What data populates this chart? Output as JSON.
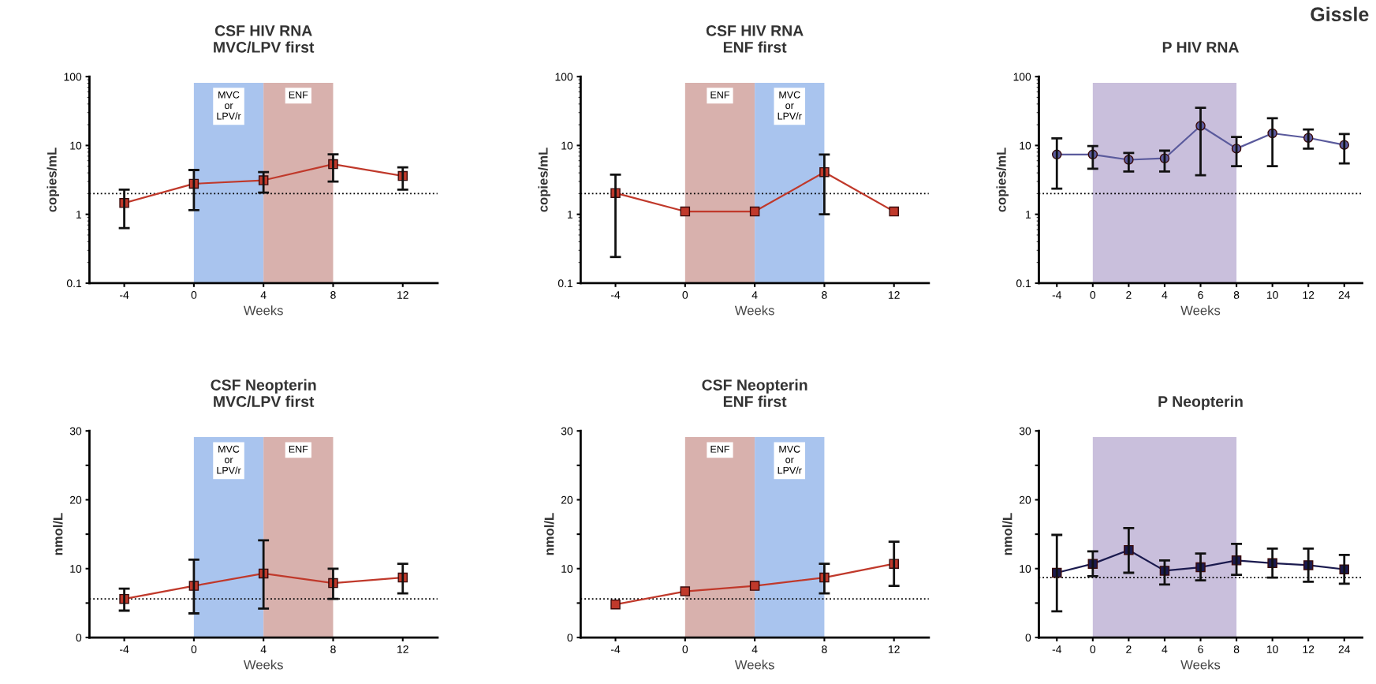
{
  "chart_data": [
    {
      "type": "line",
      "title": "CSF HIV RNA\nMVC/LPV first",
      "xlabel": "Weeks",
      "ylabel": "copies/mL",
      "log": true,
      "x": [
        -4,
        0,
        4,
        8,
        12
      ],
      "xlim": [
        -6,
        14
      ],
      "xticks": [
        -4,
        0,
        4,
        8,
        12
      ],
      "ylim": [
        0.1,
        100
      ],
      "yticks": [
        0.1,
        1,
        10,
        100
      ],
      "marker": "square",
      "grid": false,
      "series": [
        {
          "color": "#c0392b",
          "values": [
            1.46,
            2.78,
            3.12,
            5.35,
            3.6
          ],
          "errors": [
            [
              0.63,
              2.28
            ],
            [
              1.15,
              4.4
            ],
            [
              2.07,
              4.1
            ],
            [
              3.0,
              7.45
            ],
            [
              2.28,
              4.8
            ]
          ]
        }
      ],
      "ref_lines": [
        {
          "axis": "y",
          "value": 2,
          "line_style": "dotted",
          "color": "#000000"
        }
      ],
      "bands": [
        {
          "axis": "x",
          "from": 0,
          "to": 4,
          "label": "MVC\nor\nLPV/r",
          "color": "#a9c4ee"
        },
        {
          "axis": "x",
          "from": 4,
          "to": 8,
          "label": "ENF",
          "color": "#d8b1ad"
        }
      ]
    },
    {
      "type": "line",
      "title": "CSF HIV RNA\nENF first",
      "xlabel": "Weeks",
      "ylabel": "copies/mL",
      "log": true,
      "x": [
        -4,
        0,
        4,
        8,
        12
      ],
      "xlim": [
        -6,
        14
      ],
      "xticks": [
        -4,
        0,
        4,
        8,
        12
      ],
      "ylim": [
        0.1,
        100
      ],
      "yticks": [
        0.1,
        1,
        10,
        100
      ],
      "marker": "square",
      "grid": false,
      "series": [
        {
          "color": "#c0392b",
          "values": [
            2.04,
            1.1,
            1.1,
            4.1,
            1.1
          ],
          "errors": [
            [
              0.24,
              3.77
            ],
            null,
            null,
            [
              1.0,
              7.4
            ],
            null
          ]
        }
      ],
      "ref_lines": [
        {
          "axis": "y",
          "value": 2,
          "line_style": "dotted",
          "color": "#000000"
        }
      ],
      "bands": [
        {
          "axis": "x",
          "from": 0,
          "to": 4,
          "label": "ENF",
          "color": "#d8b1ad"
        },
        {
          "axis": "x",
          "from": 4,
          "to": 8,
          "label": "MVC\nor\nLPV/r",
          "color": "#a9c4ee"
        }
      ]
    },
    {
      "type": "line",
      "title": "P HIV RNA",
      "xlabel": "Weeks",
      "ylabel": "copies/mL",
      "log": true,
      "categories": [
        "-4",
        "0",
        "2",
        "4",
        "6",
        "8",
        "10",
        "12",
        "24"
      ],
      "ylim": [
        0.1,
        100
      ],
      "yticks": [
        0.1,
        1,
        10,
        100
      ],
      "marker": "circle",
      "grid": false,
      "series": [
        {
          "color": "#5a5a9c",
          "values": [
            7.4,
            7.4,
            6.2,
            6.5,
            19.3,
            9.0,
            15.0,
            12.9,
            10.2
          ],
          "errors": [
            [
              2.36,
              12.7
            ],
            [
              4.6,
              9.8
            ],
            [
              4.2,
              7.8
            ],
            [
              4.2,
              8.4
            ],
            [
              3.7,
              35.3
            ],
            [
              5.0,
              13.3
            ],
            [
              5.0,
              24.8
            ],
            [
              9.0,
              17.1
            ],
            [
              5.5,
              14.7
            ]
          ]
        }
      ],
      "ref_lines": [
        {
          "axis": "y",
          "value": 2,
          "line_style": "dotted",
          "color": "#000000"
        }
      ],
      "bands": [
        {
          "axis": "x",
          "from": "0",
          "to": "8",
          "color": "#c9bfdc"
        }
      ],
      "annotations": [
        "Gissle"
      ]
    },
    {
      "type": "line",
      "title": "CSF Neopterin\nMVC/LPV first",
      "xlabel": "Weeks",
      "ylabel": "nmol/L",
      "x": [
        -4,
        0,
        4,
        8,
        12
      ],
      "xlim": [
        -6,
        14
      ],
      "xticks": [
        -4,
        0,
        4,
        8,
        12
      ],
      "ylim": [
        0,
        30
      ],
      "yticks": [
        0,
        {
          "value": 5,
          "label": null
        },
        10,
        {
          "value": 15,
          "label": null
        },
        20,
        {
          "value": 25,
          "label": null
        },
        30
      ],
      "marker": "square",
      "grid": false,
      "series": [
        {
          "color": "#c0392b",
          "values": [
            5.6,
            7.5,
            9.3,
            7.9,
            8.7
          ],
          "errors": [
            [
              3.9,
              7.1
            ],
            [
              3.5,
              11.3
            ],
            [
              4.2,
              14.1
            ],
            [
              5.6,
              10.0
            ],
            [
              6.4,
              10.7
            ]
          ]
        }
      ],
      "ref_lines": [
        {
          "axis": "y",
          "value": 5.6,
          "line_style": "dotted",
          "color": "#000000"
        }
      ],
      "bands": [
        {
          "axis": "x",
          "from": 0,
          "to": 4,
          "label": "MVC\nor\nLPV/r",
          "color": "#a9c4ee"
        },
        {
          "axis": "x",
          "from": 4,
          "to": 8,
          "label": "ENF",
          "color": "#d8b1ad"
        }
      ]
    },
    {
      "type": "line",
      "title": "CSF Neopterin\nENF first",
      "xlabel": "Weeks",
      "ylabel": "nmol/L",
      "x": [
        -4,
        0,
        4,
        8,
        12
      ],
      "xlim": [
        -6,
        14
      ],
      "xticks": [
        -4,
        0,
        4,
        8,
        12
      ],
      "ylim": [
        0,
        30
      ],
      "yticks": [
        0,
        {
          "value": 5,
          "label": null
        },
        10,
        {
          "value": 15,
          "label": null
        },
        20,
        {
          "value": 25,
          "label": null
        },
        30
      ],
      "marker": "square",
      "grid": false,
      "series": [
        {
          "color": "#c0392b",
          "values": [
            4.8,
            6.7,
            7.5,
            8.7,
            10.7
          ],
          "errors": [
            null,
            null,
            null,
            [
              6.4,
              10.7
            ],
            [
              7.5,
              13.9
            ]
          ]
        }
      ],
      "ref_lines": [
        {
          "axis": "y",
          "value": 5.6,
          "line_style": "dotted",
          "color": "#000000"
        }
      ],
      "bands": [
        {
          "axis": "x",
          "from": 0,
          "to": 4,
          "label": "ENF",
          "color": "#d8b1ad"
        },
        {
          "axis": "x",
          "from": 4,
          "to": 8,
          "label": "MVC\nor\nLPV/r",
          "color": "#a9c4ee"
        }
      ]
    },
    {
      "type": "line",
      "title": "P Neopterin",
      "xlabel": "Weeks",
      "ylabel": "nmol/L",
      "categories": [
        "-4",
        "0",
        "2",
        "4",
        "6",
        "8",
        "10",
        "12",
        "24"
      ],
      "ylim": [
        0,
        30
      ],
      "yticks": [
        0,
        {
          "value": 5,
          "label": null
        },
        10,
        {
          "value": 15,
          "label": null
        },
        20,
        {
          "value": 25,
          "label": null
        },
        30
      ],
      "marker": "square",
      "grid": false,
      "series": [
        {
          "color": "#1a1a4e",
          "values": [
            9.4,
            10.7,
            12.7,
            9.7,
            10.2,
            11.2,
            10.8,
            10.5,
            9.9
          ],
          "errors": [
            [
              3.8,
              14.9
            ],
            [
              8.9,
              12.5
            ],
            [
              9.4,
              15.9
            ],
            [
              7.7,
              11.2
            ],
            [
              8.3,
              12.2
            ],
            [
              9.1,
              13.6
            ],
            [
              8.7,
              12.9
            ],
            [
              8.1,
              12.9
            ],
            [
              7.8,
              12.0
            ]
          ]
        }
      ],
      "ref_lines": [
        {
          "axis": "y",
          "value": 8.7,
          "line_style": "dotted",
          "color": "#000000"
        }
      ],
      "bands": [
        {
          "axis": "x",
          "from": "0",
          "to": "8",
          "color": "#c9bfdc"
        }
      ]
    }
  ]
}
